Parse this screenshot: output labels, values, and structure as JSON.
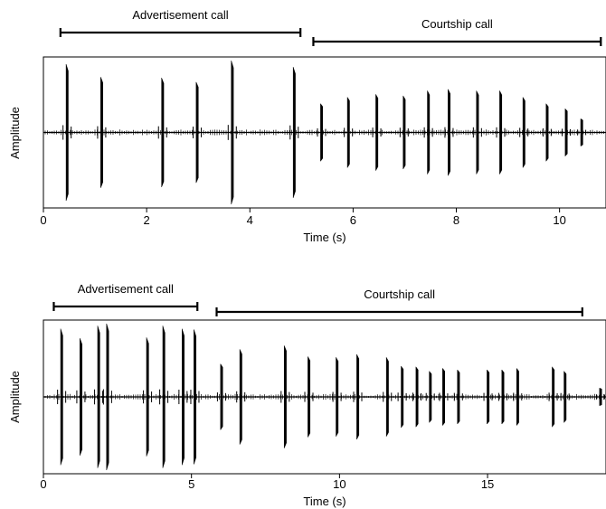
{
  "chart_data": [
    {
      "type": "waveform",
      "xlabel": "Time (s)",
      "ylabel": "Amplitude",
      "xlim": [
        0,
        10.9
      ],
      "xticks": [
        0,
        2,
        4,
        6,
        8,
        10
      ],
      "ylim": [
        -1,
        1
      ],
      "segments": [
        {
          "label": "Advertisement call",
          "start": 0.33,
          "end": 4.98
        },
        {
          "label": "Courtship call",
          "start": 5.23,
          "end": 10.8
        }
      ],
      "pulses": [
        {
          "t": 0.45,
          "amp": 0.95
        },
        {
          "t": 1.12,
          "amp": 0.77
        },
        {
          "t": 2.3,
          "amp": 0.76
        },
        {
          "t": 2.97,
          "amp": 0.7
        },
        {
          "t": 3.65,
          "amp": 1.0
        },
        {
          "t": 4.85,
          "amp": 0.91
        },
        {
          "t": 5.38,
          "amp": 0.4
        },
        {
          "t": 5.9,
          "amp": 0.49
        },
        {
          "t": 6.45,
          "amp": 0.53
        },
        {
          "t": 6.98,
          "amp": 0.51
        },
        {
          "t": 7.45,
          "amp": 0.58
        },
        {
          "t": 7.85,
          "amp": 0.6
        },
        {
          "t": 8.4,
          "amp": 0.58
        },
        {
          "t": 8.85,
          "amp": 0.58
        },
        {
          "t": 9.3,
          "amp": 0.49
        },
        {
          "t": 9.75,
          "amp": 0.4
        },
        {
          "t": 10.12,
          "amp": 0.33
        },
        {
          "t": 10.42,
          "amp": 0.19
        }
      ]
    },
    {
      "type": "waveform",
      "xlabel": "Time (s)",
      "ylabel": "Amplitude",
      "xlim": [
        0,
        19.0
      ],
      "xticks": [
        0,
        5,
        10,
        15
      ],
      "ylim": [
        -1,
        1
      ],
      "segments": [
        {
          "label": "Advertisement call",
          "start": 0.35,
          "end": 5.2
        },
        {
          "label": "Courtship call",
          "start": 5.85,
          "end": 18.2
        }
      ],
      "pulses": [
        {
          "t": 0.6,
          "amp": 0.93
        },
        {
          "t": 1.25,
          "amp": 0.8
        },
        {
          "t": 1.85,
          "amp": 0.97
        },
        {
          "t": 2.15,
          "amp": 1.0
        },
        {
          "t": 3.5,
          "amp": 0.81
        },
        {
          "t": 4.05,
          "amp": 0.97
        },
        {
          "t": 4.7,
          "amp": 0.93
        },
        {
          "t": 5.1,
          "amp": 0.92
        },
        {
          "t": 6.0,
          "amp": 0.45
        },
        {
          "t": 6.65,
          "amp": 0.65
        },
        {
          "t": 8.15,
          "amp": 0.7
        },
        {
          "t": 8.95,
          "amp": 0.55
        },
        {
          "t": 9.9,
          "amp": 0.54
        },
        {
          "t": 10.6,
          "amp": 0.58
        },
        {
          "t": 11.6,
          "amp": 0.54
        },
        {
          "t": 12.1,
          "amp": 0.42
        },
        {
          "t": 12.6,
          "amp": 0.41
        },
        {
          "t": 13.05,
          "amp": 0.35
        },
        {
          "t": 13.5,
          "amp": 0.39
        },
        {
          "t": 14.0,
          "amp": 0.37
        },
        {
          "t": 15.0,
          "amp": 0.37
        },
        {
          "t": 15.5,
          "amp": 0.37
        },
        {
          "t": 16.0,
          "amp": 0.39
        },
        {
          "t": 17.2,
          "amp": 0.41
        },
        {
          "t": 17.6,
          "amp": 0.35
        },
        {
          "t": 18.8,
          "amp": 0.12
        }
      ]
    }
  ]
}
